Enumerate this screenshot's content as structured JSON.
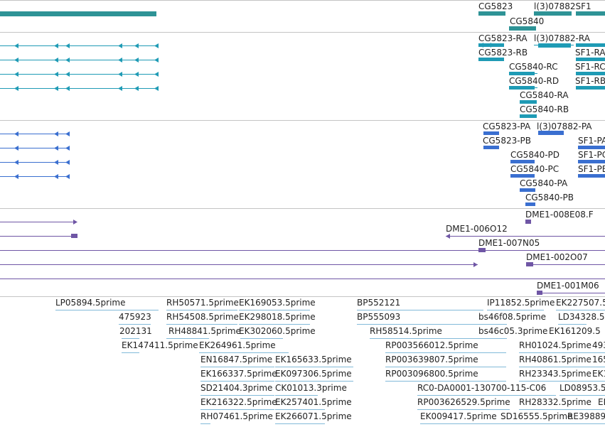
{
  "colors": {
    "gene": "#2e9396",
    "transcript": "#1f9bb5",
    "cds": "#3a6fd0",
    "match": "#6f56a5",
    "est": "#82bad9",
    "label": "#222222",
    "divider": "#c4c4c4"
  },
  "tracks": {
    "genes": {
      "labels": [
        "CG5823",
        "l(3)07882SF1",
        "CG5840"
      ]
    },
    "transcripts": {
      "labels": [
        "CG5823-RA",
        "l(3)07882-RA",
        "CG5823-RB",
        "SF1-RA",
        "CG5840-RC",
        "SF1-RC",
        "CG5840-RD",
        "SF1-RB",
        "CG5840-RA",
        "CG5840-RB"
      ]
    },
    "proteins": {
      "labels": [
        "CG5823-PA",
        "l(3)07882-PA",
        "CG5823-PB",
        "SF1-PA",
        "CG5840-PD",
        "SF1-PC",
        "CG5840-PC",
        "SF1-PB",
        "CG5840-PA",
        "CG5840-PB"
      ]
    },
    "matches": {
      "labels": [
        "DME1-008E08.F",
        "DME1-006O12",
        "DME1-007N05",
        "DME1-002O07",
        "DME1-001M06"
      ]
    },
    "ests": {
      "labels": [
        "LP05894.5prime",
        "RH50571.5prime",
        "EK169053.5prime",
        "BP552121",
        "IP11852.5prime",
        "EK227507.5",
        "475923",
        "RH54508.5prime",
        "EK298018.5prime",
        "BP555093",
        "bs46f08.5prime",
        "LD34328.5",
        "202131",
        "RH48841.5prime",
        "EK302060.5prime",
        "RH58514.5prime",
        "bs46c05.3prime",
        "EK161209.5",
        "EK147411.5prime",
        "EK264961.5prime",
        "RP003566012.5prime",
        "RH01024.5prime",
        "493",
        "EN16847.5prime",
        "EK165633.5prime",
        "RP003639807.5prime",
        "RH40861.5prime",
        "165",
        "EK166337.5prime",
        "EK097306.5prime",
        "RP003096800.5prime",
        "RH23343.5prime",
        "EK1",
        "SD21404.3prime",
        "CK01013.3prime",
        "RC0-DA0001-130700-115-C06",
        "LD08953.5",
        "EK216322.5prime",
        "EK257401.5prime",
        "RP003626529.5prime",
        "RH28332.5prime",
        "EI",
        "RH07461.5prime",
        "EK266071.5prime",
        "EK009417.5prime",
        "SD16555.5prime",
        "RE39889"
      ]
    }
  }
}
